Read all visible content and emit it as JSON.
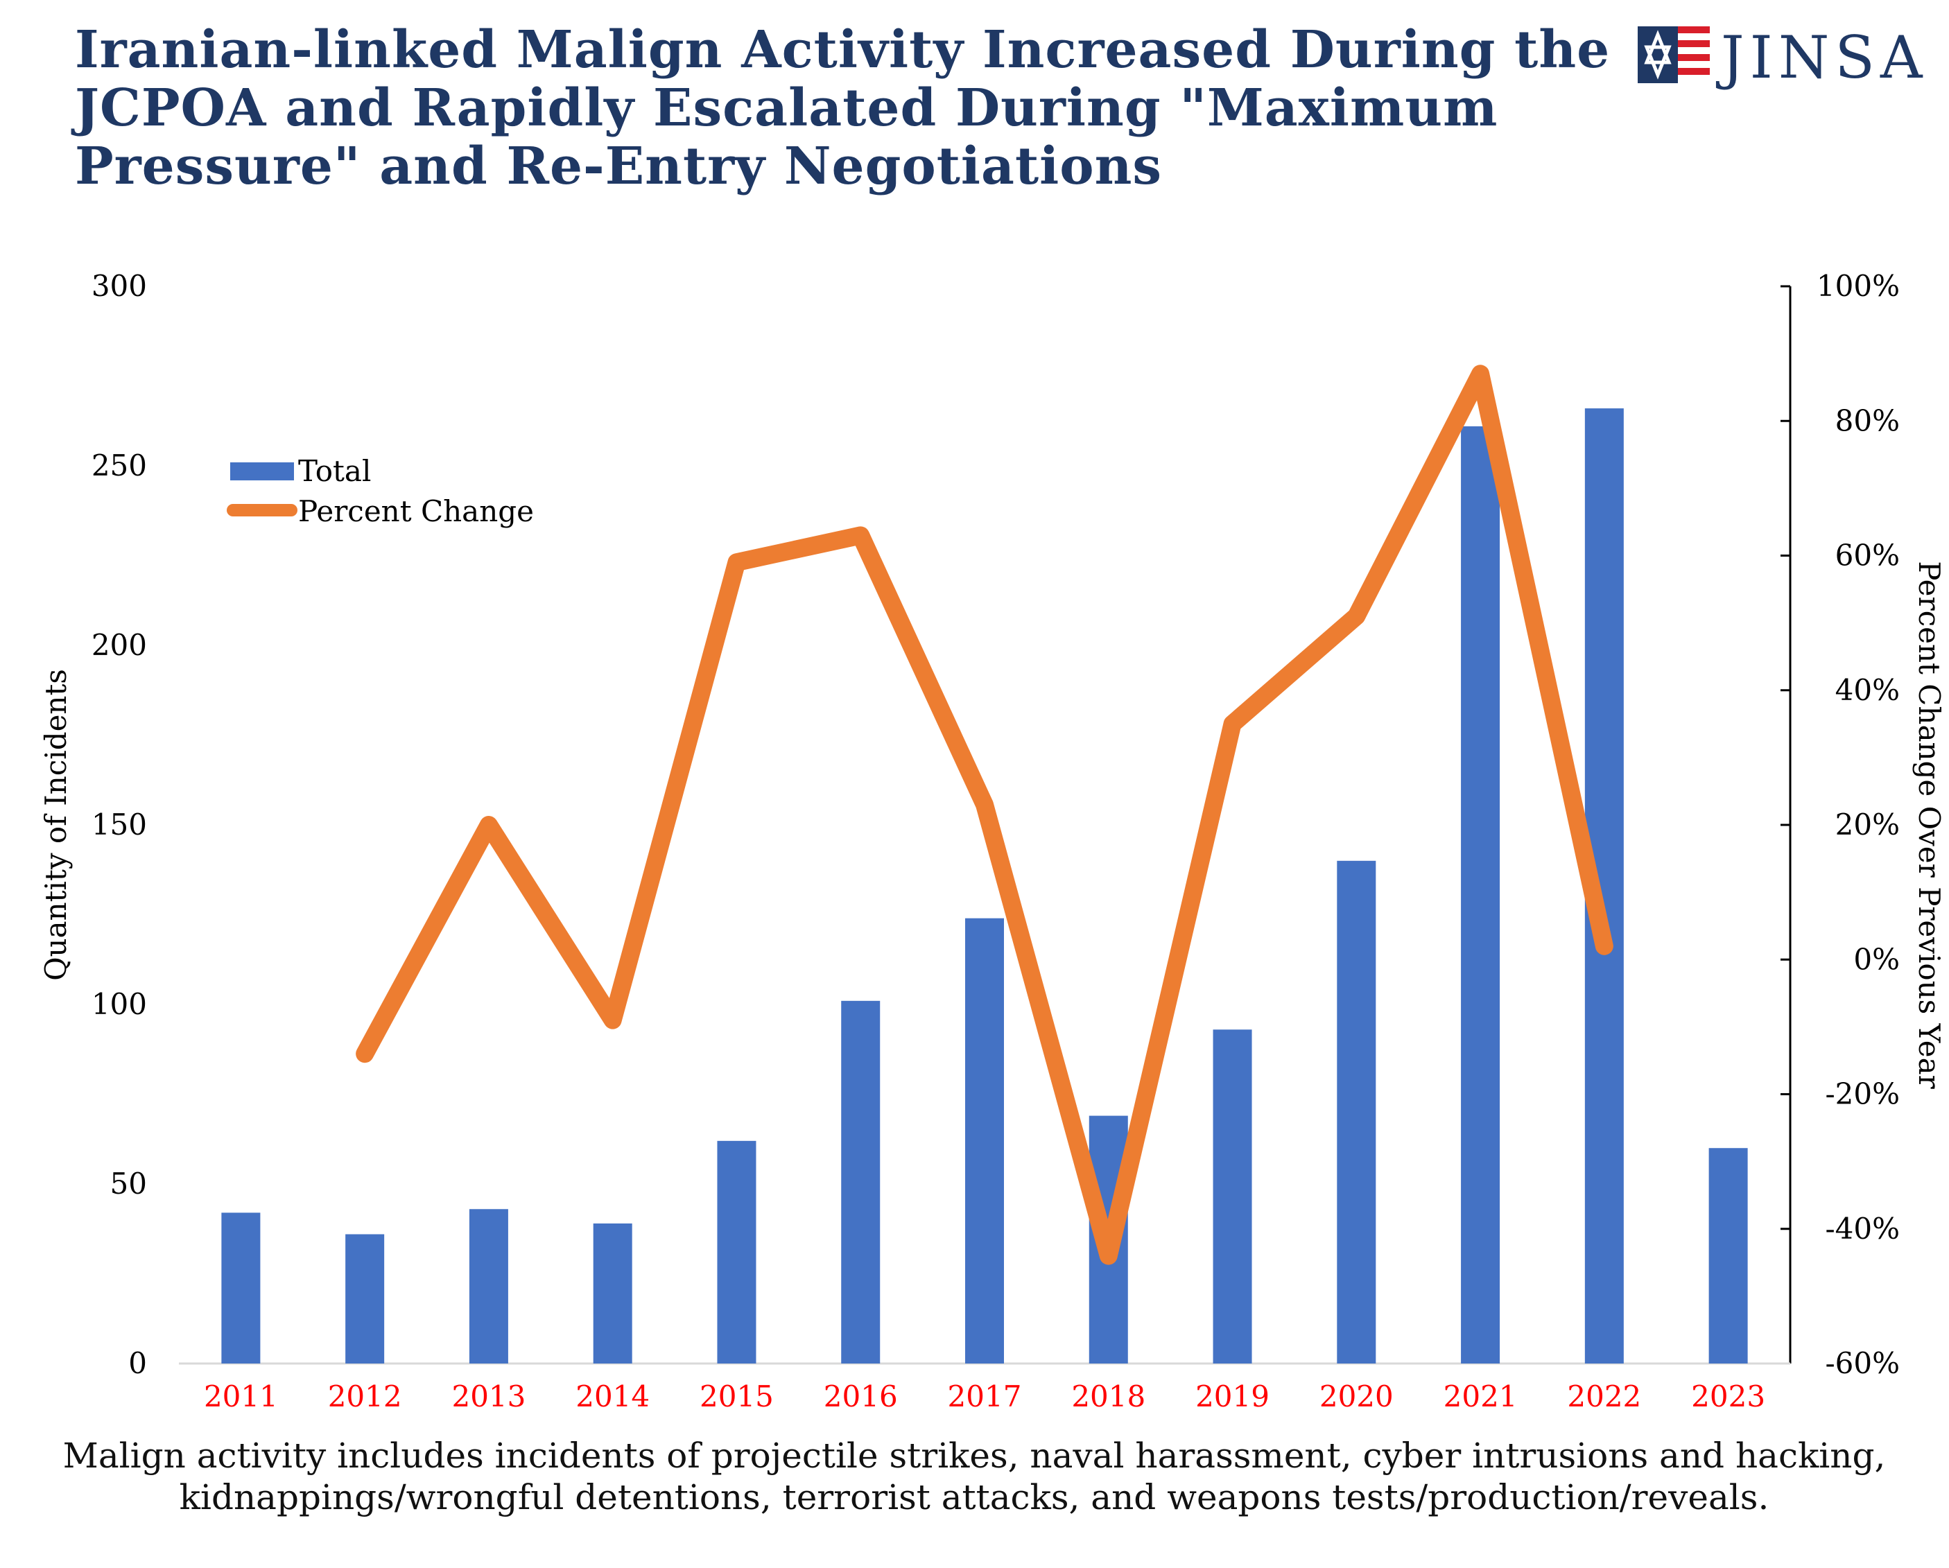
{
  "header": {
    "title": "Iranian-linked Malign Activity Increased During the JCPOA and Rapidly Escalated During \"Maximum Pressure\" and Re-Entry Negotiations",
    "logo_text": "JINSA"
  },
  "chart_data": {
    "type": "bar",
    "title": "Iranian-linked Malign Activity Increased During the JCPOA and Rapidly Escalated During \"Maximum Pressure\" and Re-Entry Negotiations",
    "categories": [
      "2011",
      "2012",
      "2013",
      "2014",
      "2015",
      "2016",
      "2017",
      "2018",
      "2019",
      "2020",
      "2021",
      "2022",
      "2023"
    ],
    "series": [
      {
        "name": "Total",
        "type": "bar",
        "axis": "left",
        "color": "#4472c4",
        "values": [
          42,
          36,
          43,
          39,
          62,
          101,
          124,
          69,
          93,
          140,
          261,
          266,
          60
        ]
      },
      {
        "name": "Percent Change",
        "type": "line",
        "axis": "right",
        "color": "#ed7d31",
        "values": [
          null,
          -14,
          20,
          -9,
          59,
          63,
          23,
          -44,
          35,
          51,
          87,
          2,
          null
        ]
      }
    ],
    "ylabel": "Quantity of Incidents",
    "y2label": "Percent Change Over Previous Year",
    "ylim": [
      0,
      300
    ],
    "y2lim": [
      -60,
      100
    ],
    "yticks": [
      "0",
      "50",
      "100",
      "150",
      "200",
      "250",
      "300"
    ],
    "y2ticks": [
      "-60%",
      "-40%",
      "-20%",
      "0%",
      "20%",
      "40%",
      "60%",
      "80%",
      "100%"
    ],
    "xtick_color": "#ff0000",
    "legend": {
      "position": "top-left",
      "entries": [
        "Total",
        "Percent Change"
      ]
    },
    "grid": false
  },
  "footnote": "Malign activity includes incidents of projectile strikes, naval harassment, cyber intrusions and hacking, kidnappings/wrongful detentions, terrorist attacks, and weapons tests/production/reveals.",
  "colors": {
    "title": "#1f3864",
    "bar": "#4472c4",
    "line": "#ed7d31",
    "year_labels": "#ff0000"
  }
}
